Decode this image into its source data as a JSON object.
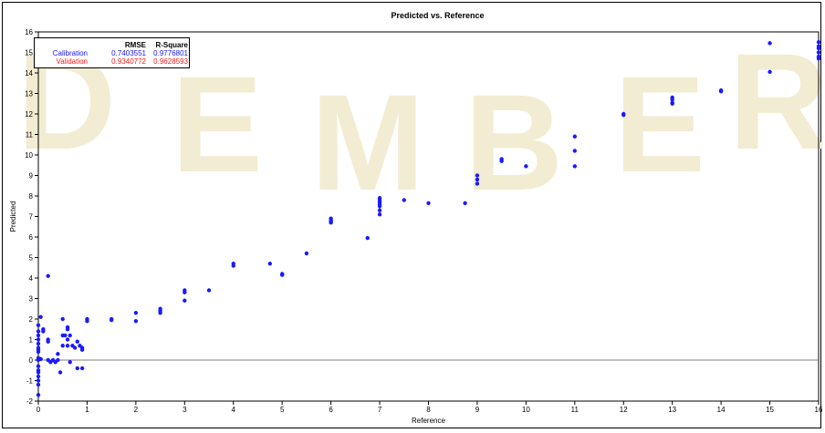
{
  "chart_data": {
    "type": "scatter",
    "title": "Predicted vs. Reference",
    "xlabel": "Reference",
    "ylabel": "Predicted",
    "xlim": [
      0,
      16
    ],
    "ylim": [
      -2,
      16
    ],
    "xticks": [
      "0",
      "1",
      "2",
      "3",
      "4",
      "5",
      "6",
      "7",
      "8",
      "9",
      "10",
      "11",
      "12",
      "13",
      "14",
      "15",
      "16"
    ],
    "yticks": [
      "-2",
      "-1",
      "0",
      "1",
      "2",
      "3",
      "4",
      "5",
      "6",
      "7",
      "8",
      "9",
      "10",
      "11",
      "12",
      "13",
      "14",
      "15",
      "16"
    ],
    "reference_line_y": 0,
    "marker_color": "#1a1aff",
    "legend": {
      "headers": [
        "RMSE",
        "R-Square"
      ],
      "rows": [
        {
          "label": "Calibration",
          "rmse": "0.7403551",
          "rsq": "0.9776801",
          "color": "#1515ff"
        },
        {
          "label": "Validation",
          "rmse": "0.9340772",
          "rsq": "0.9628593",
          "color": "#ff1a1a"
        }
      ]
    },
    "series": [
      {
        "points": [
          [
            0,
            -1.7
          ],
          [
            0,
            -1.2
          ],
          [
            0,
            -1.0
          ],
          [
            0,
            -0.8
          ],
          [
            0,
            -0.6
          ],
          [
            0,
            -0.5
          ],
          [
            0,
            -0.3
          ],
          [
            0,
            0.0
          ],
          [
            0,
            0.1
          ],
          [
            0,
            0.4
          ],
          [
            0,
            0.5
          ],
          [
            0,
            0.6
          ],
          [
            0,
            0.8
          ],
          [
            0,
            1.0
          ],
          [
            0,
            1.2
          ],
          [
            0,
            1.4
          ],
          [
            0,
            1.7
          ],
          [
            0.05,
            2.1
          ],
          [
            0.05,
            0.05
          ],
          [
            0.1,
            1.5
          ],
          [
            0.1,
            1.4
          ],
          [
            0.2,
            4.1
          ],
          [
            0.2,
            0.9
          ],
          [
            0.2,
            1.0
          ],
          [
            0.2,
            0.0
          ],
          [
            0.25,
            -0.1
          ],
          [
            0.3,
            0.0
          ],
          [
            0.35,
            -0.1
          ],
          [
            0.4,
            0.0
          ],
          [
            0.4,
            0.3
          ],
          [
            0.45,
            -0.6
          ],
          [
            0.5,
            2.0
          ],
          [
            0.5,
            1.2
          ],
          [
            0.5,
            0.7
          ],
          [
            0.55,
            1.2
          ],
          [
            0.6,
            0.7
          ],
          [
            0.6,
            1.0
          ],
          [
            0.6,
            1.6
          ],
          [
            0.6,
            1.5
          ],
          [
            0.65,
            1.2
          ],
          [
            0.65,
            -0.1
          ],
          [
            0.7,
            0.7
          ],
          [
            0.75,
            0.6
          ],
          [
            0.8,
            0.9
          ],
          [
            0.8,
            -0.4
          ],
          [
            0.85,
            0.7
          ],
          [
            0.9,
            0.5
          ],
          [
            0.9,
            0.6
          ],
          [
            0.9,
            -0.4
          ],
          [
            1.0,
            2.0
          ],
          [
            1.0,
            1.9
          ],
          [
            1.5,
            2.0
          ],
          [
            1.5,
            1.95
          ],
          [
            2.0,
            2.3
          ],
          [
            2.0,
            1.9
          ],
          [
            2.5,
            2.5
          ],
          [
            2.5,
            2.4
          ],
          [
            2.5,
            2.3
          ],
          [
            3.0,
            3.4
          ],
          [
            3.0,
            3.3
          ],
          [
            3.0,
            2.9
          ],
          [
            3.5,
            3.4
          ],
          [
            4.0,
            4.7
          ],
          [
            4.0,
            4.6
          ],
          [
            4.75,
            4.7
          ],
          [
            5.0,
            4.2
          ],
          [
            5.0,
            4.15
          ],
          [
            5.5,
            5.2
          ],
          [
            6.0,
            6.9
          ],
          [
            6.0,
            6.8
          ],
          [
            6.0,
            6.7
          ],
          [
            6.0,
            6.75
          ],
          [
            6.75,
            5.95
          ],
          [
            7.0,
            7.9
          ],
          [
            7.0,
            7.7
          ],
          [
            7.0,
            7.5
          ],
          [
            7.0,
            7.6
          ],
          [
            7.0,
            7.3
          ],
          [
            7.0,
            7.1
          ],
          [
            7.0,
            7.8
          ],
          [
            7.5,
            7.8
          ],
          [
            8.0,
            7.65
          ],
          [
            8.75,
            7.65
          ],
          [
            9.0,
            9.0
          ],
          [
            9.0,
            8.8
          ],
          [
            9.0,
            8.6
          ],
          [
            9.5,
            9.8
          ],
          [
            9.5,
            9.7
          ],
          [
            10.0,
            9.45
          ],
          [
            11.0,
            10.9
          ],
          [
            11.0,
            10.2
          ],
          [
            11.0,
            9.45
          ],
          [
            12.0,
            12.0
          ],
          [
            12.0,
            11.95
          ],
          [
            13.0,
            12.8
          ],
          [
            13.0,
            12.7
          ],
          [
            13.0,
            12.5
          ],
          [
            13.0,
            12.55
          ],
          [
            14.0,
            13.1
          ],
          [
            14.0,
            13.15
          ],
          [
            15.0,
            15.45
          ],
          [
            15.0,
            14.05
          ],
          [
            16.0,
            15.5
          ],
          [
            16.0,
            15.3
          ],
          [
            16.0,
            15.2
          ],
          [
            16.0,
            15.0
          ],
          [
            16.0,
            14.8
          ],
          [
            16.0,
            14.7
          ]
        ]
      }
    ]
  },
  "watermark": [
    "D",
    "E",
    "M",
    "B",
    "E",
    "R"
  ]
}
